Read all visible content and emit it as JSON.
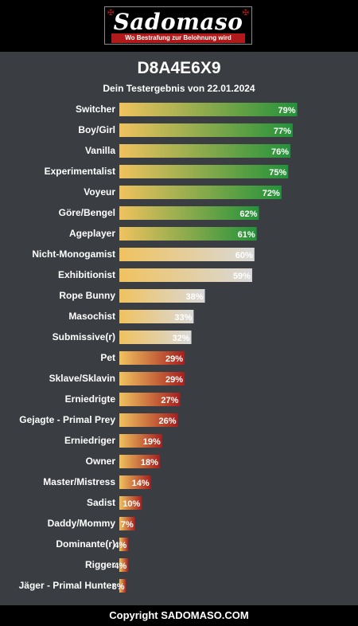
{
  "logo": {
    "brand": "Sadomaso",
    "tagline": "Wo Bestrafung zur Belohnung wird"
  },
  "header": {
    "title": "D8A4E6X9",
    "subtitle": "Dein Testergebnis von 22.01.2024"
  },
  "footer": {
    "copyright": "Copyright SADOMASO.COM"
  },
  "colors": {
    "background": "#3a3d42",
    "bar_start": "#f0c25e",
    "green_end": "#23923a",
    "grey_end": "#d9d9d9",
    "red_end": "#a61f1f"
  },
  "chart_data": {
    "type": "bar",
    "orientation": "horizontal",
    "title": "D8A4E6X9",
    "subtitle": "Dein Testergebnis von 22.01.2024",
    "xlim": [
      0,
      100
    ],
    "grid": false,
    "categories": [
      "Switcher",
      "Boy/Girl",
      "Vanilla",
      "Experimentalist",
      "Voyeur",
      "Göre/Bengel",
      "Ageplayer",
      "Nicht-Monogamist",
      "Exhibitionist",
      "Rope Bunny",
      "Masochist",
      "Submissive(r)",
      "Pet",
      "Sklave/Sklavin",
      "Erniedrigte",
      "Gejagte - Primal Prey",
      "Erniedriger",
      "Owner",
      "Master/Mistress",
      "Sadist",
      "Daddy/Mommy",
      "Dominante(r)",
      "Rigger",
      "Jäger - Primal Hunter"
    ],
    "values": [
      79,
      77,
      76,
      75,
      72,
      62,
      61,
      60,
      59,
      38,
      33,
      32,
      29,
      29,
      27,
      26,
      19,
      18,
      14,
      10,
      7,
      4,
      4,
      3
    ],
    "value_labels": [
      "79%",
      "77%",
      "76%",
      "75%",
      "72%",
      "62%",
      "61%",
      "60%",
      "59%",
      "38%",
      "33%",
      "32%",
      "29%",
      "29%",
      "27%",
      "26%",
      "19%",
      "18%",
      "14%",
      "10%",
      "7%",
      "4%",
      "4%",
      "3%"
    ],
    "color_groups": [
      "green",
      "green",
      "green",
      "green",
      "green",
      "green",
      "green",
      "grey",
      "grey",
      "grey",
      "grey",
      "grey",
      "red",
      "red",
      "red",
      "red",
      "red",
      "red",
      "red",
      "red",
      "red",
      "red",
      "red",
      "red"
    ]
  }
}
